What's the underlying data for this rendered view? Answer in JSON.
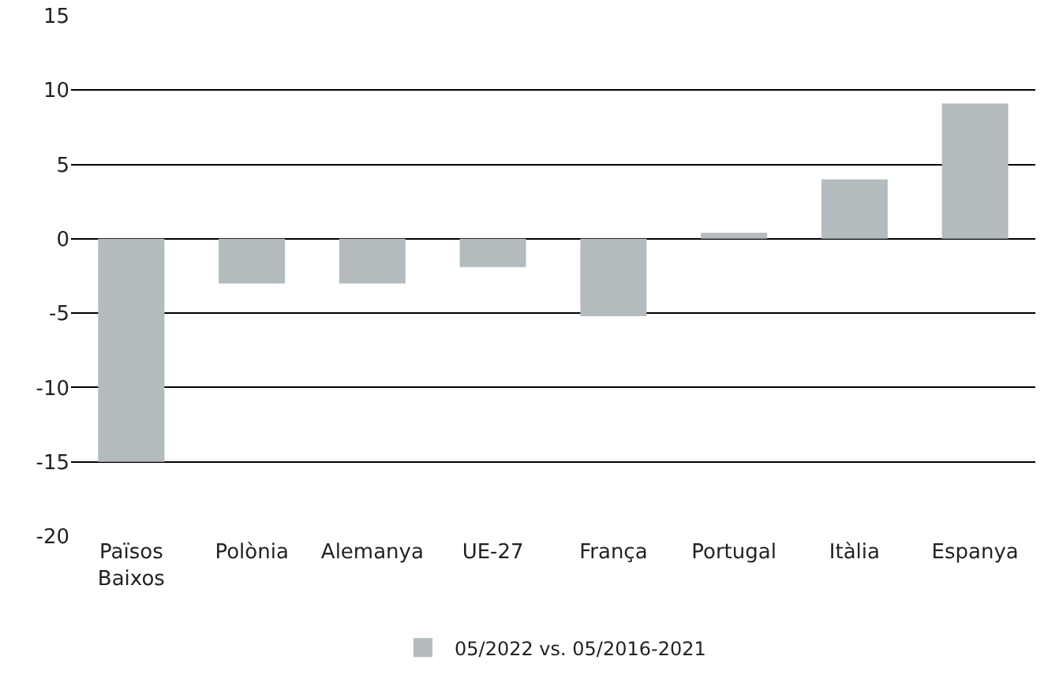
{
  "chart_data": {
    "type": "bar",
    "categories": [
      "Països Baixos",
      "Polònia",
      "Alemanya",
      "UE-27",
      "França",
      "Portugal",
      "Itàlia",
      "Espanya"
    ],
    "series": [
      {
        "name": "05/2022 vs. 05/2016-2021",
        "color": "#b3bbbf",
        "values": [
          -15.0,
          -3.0,
          -3.0,
          -1.9,
          -5.2,
          0.4,
          4.0,
          9.1
        ]
      }
    ],
    "ylim": [
      -20,
      15
    ],
    "yticks": [
      -20,
      -15,
      -10,
      -5,
      0,
      5,
      10,
      15
    ],
    "grid": "y",
    "legend": "bottom"
  }
}
